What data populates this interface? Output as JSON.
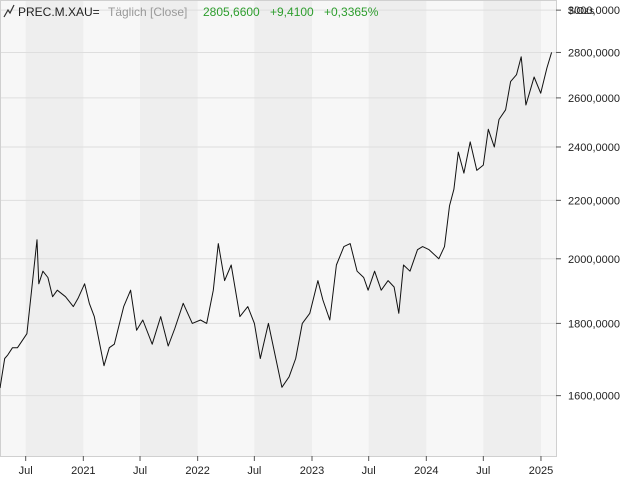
{
  "header": {
    "symbol": "PREC.M.XAU=",
    "interval": "Täglich [Close]",
    "last": "2805,6600",
    "change": "+9,4100",
    "change_pct": "+0,3365%"
  },
  "colors": {
    "positive": "#2e9e2e",
    "muted": "#999999",
    "text": "#222222",
    "line": "#111111",
    "band_light": "#f7f7f7",
    "band_dark": "#eeeeee",
    "grid": "#dedede"
  },
  "icons": {
    "header_icon": "line-chart-icon"
  },
  "chart_data": {
    "type": "line",
    "ylabel": "$/Ozs",
    "y_scale": "log",
    "ylim": [
      1450,
      3050
    ],
    "xlim": [
      "2020-04-10",
      "2025-02-18"
    ],
    "grid": true,
    "y_ticks": [
      {
        "value": 1600,
        "label": "1600,0000"
      },
      {
        "value": 1800,
        "label": "1800,0000"
      },
      {
        "value": 2000,
        "label": "2000,0000"
      },
      {
        "value": 2200,
        "label": "2200,0000"
      },
      {
        "value": 2400,
        "label": "2400,0000"
      },
      {
        "value": 2600,
        "label": "2600,0000"
      },
      {
        "value": 2800,
        "label": "2800,0000"
      },
      {
        "value": 3000,
        "label": "3000,0000"
      }
    ],
    "x_ticks": [
      {
        "date": "2020-07-01",
        "label": "Jul"
      },
      {
        "date": "2021-01-01",
        "label": "2021"
      },
      {
        "date": "2021-07-01",
        "label": "Jul"
      },
      {
        "date": "2022-01-01",
        "label": "2022"
      },
      {
        "date": "2022-07-01",
        "label": "Jul"
      },
      {
        "date": "2023-01-01",
        "label": "2023"
      },
      {
        "date": "2023-07-01",
        "label": "Jul"
      },
      {
        "date": "2024-01-01",
        "label": "2024"
      },
      {
        "date": "2024-07-01",
        "label": "Jul"
      },
      {
        "date": "2025-01-01",
        "label": "2025"
      }
    ],
    "series": [
      {
        "x": [
          "2020-04-10",
          "2020-04-25",
          "2020-05-05",
          "2020-05-20",
          "2020-06-05",
          "2020-06-20",
          "2020-07-05",
          "2020-07-20",
          "2020-08-06",
          "2020-08-12",
          "2020-08-25",
          "2020-09-10",
          "2020-09-25",
          "2020-10-10",
          "2020-11-05",
          "2020-11-30",
          "2020-12-15",
          "2021-01-05",
          "2021-01-20",
          "2021-02-05",
          "2021-03-08",
          "2021-03-25",
          "2021-04-10",
          "2021-05-10",
          "2021-06-01",
          "2021-06-20",
          "2021-07-10",
          "2021-08-09",
          "2021-09-05",
          "2021-09-29",
          "2021-10-20",
          "2021-11-16",
          "2021-12-15",
          "2022-01-10",
          "2022-01-30",
          "2022-02-20",
          "2022-03-08",
          "2022-03-28",
          "2022-04-18",
          "2022-05-16",
          "2022-06-10",
          "2022-07-01",
          "2022-07-20",
          "2022-08-15",
          "2022-09-27",
          "2022-10-20",
          "2022-11-10",
          "2022-12-01",
          "2022-12-25",
          "2023-01-20",
          "2023-02-05",
          "2023-02-27",
          "2023-03-20",
          "2023-04-13",
          "2023-05-03",
          "2023-05-25",
          "2023-06-15",
          "2023-06-29",
          "2023-07-20",
          "2023-08-10",
          "2023-09-01",
          "2023-09-20",
          "2023-10-05",
          "2023-10-20",
          "2023-11-10",
          "2023-12-04",
          "2023-12-20",
          "2024-01-10",
          "2024-02-10",
          "2024-02-28",
          "2024-03-15",
          "2024-03-29",
          "2024-04-12",
          "2024-04-30",
          "2024-05-20",
          "2024-06-10",
          "2024-07-01",
          "2024-07-17",
          "2024-08-05",
          "2024-08-20",
          "2024-09-10",
          "2024-09-26",
          "2024-10-15",
          "2024-10-30",
          "2024-11-14",
          "2024-11-25",
          "2024-12-10",
          "2024-12-31",
          "2025-01-20",
          "2025-02-04"
        ],
        "values": [
          1620,
          1700,
          1710,
          1730,
          1730,
          1750,
          1770,
          1900,
          2063,
          1920,
          1960,
          1940,
          1880,
          1900,
          1880,
          1850,
          1875,
          1920,
          1860,
          1820,
          1680,
          1730,
          1740,
          1850,
          1900,
          1780,
          1810,
          1740,
          1820,
          1735,
          1785,
          1860,
          1800,
          1810,
          1800,
          1900,
          2050,
          1930,
          1980,
          1820,
          1850,
          1800,
          1700,
          1800,
          1622,
          1650,
          1700,
          1800,
          1830,
          1930,
          1870,
          1810,
          1980,
          2040,
          2050,
          1960,
          1940,
          1900,
          1960,
          1900,
          1930,
          1910,
          1830,
          1980,
          1960,
          2030,
          2040,
          2030,
          2000,
          2040,
          2180,
          2240,
          2380,
          2300,
          2420,
          2310,
          2330,
          2470,
          2400,
          2510,
          2550,
          2670,
          2700,
          2780,
          2570,
          2620,
          2690,
          2620,
          2730,
          2800
        ]
      }
    ]
  }
}
